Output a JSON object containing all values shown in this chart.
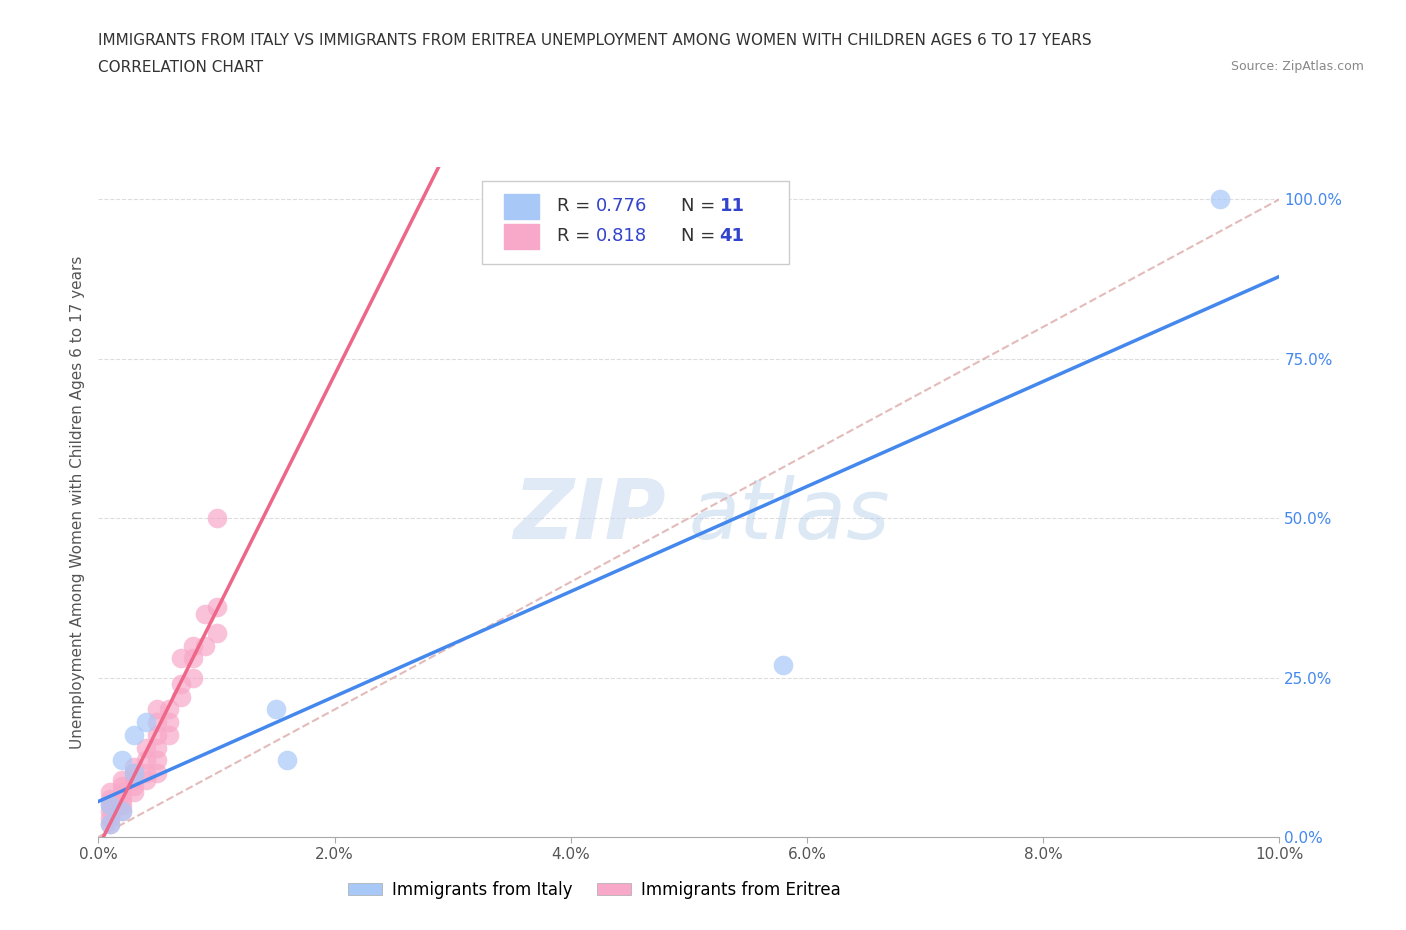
{
  "title_line1": "IMMIGRANTS FROM ITALY VS IMMIGRANTS FROM ERITREA UNEMPLOYMENT AMONG WOMEN WITH CHILDREN AGES 6 TO 17 YEARS",
  "title_line2": "CORRELATION CHART",
  "source": "Source: ZipAtlas.com",
  "ylabel": "Unemployment Among Women with Children Ages 6 to 17 years",
  "xlim": [
    0.0,
    0.1
  ],
  "ylim": [
    0.0,
    1.05
  ],
  "yticks": [
    0.0,
    0.25,
    0.5,
    0.75,
    1.0
  ],
  "ytick_labels": [
    "0.0%",
    "25.0%",
    "50.0%",
    "75.0%",
    "100.0%"
  ],
  "xticks": [
    0.0,
    0.02,
    0.04,
    0.06,
    0.08,
    0.1
  ],
  "xtick_labels": [
    "0.0%",
    "2.0%",
    "4.0%",
    "6.0%",
    "8.0%",
    "10.0%"
  ],
  "italy_color": "#a8c8f8",
  "eritrea_color": "#f8a8c8",
  "italy_line_color": "#4488ee",
  "eritrea_line_color": "#ee6688",
  "ref_line_color": "#ddaaaa",
  "italy_R": 0.776,
  "italy_N": 11,
  "eritrea_R": 0.818,
  "eritrea_N": 41,
  "legend_R_color": "#3344cc",
  "watermark_text": "ZIP",
  "watermark_text2": "atlas",
  "italy_x": [
    0.001,
    0.001,
    0.002,
    0.002,
    0.003,
    0.003,
    0.004,
    0.015,
    0.016,
    0.058,
    0.095
  ],
  "italy_y": [
    0.02,
    0.05,
    0.04,
    0.12,
    0.1,
    0.16,
    0.18,
    0.2,
    0.12,
    0.27,
    1.0
  ],
  "eritrea_x": [
    0.001,
    0.001,
    0.001,
    0.001,
    0.001,
    0.001,
    0.002,
    0.002,
    0.002,
    0.002,
    0.002,
    0.002,
    0.003,
    0.003,
    0.003,
    0.003,
    0.003,
    0.004,
    0.004,
    0.004,
    0.004,
    0.005,
    0.005,
    0.005,
    0.005,
    0.005,
    0.005,
    0.006,
    0.006,
    0.006,
    0.007,
    0.007,
    0.007,
    0.008,
    0.008,
    0.008,
    0.009,
    0.009,
    0.01,
    0.01,
    0.01
  ],
  "eritrea_y": [
    0.02,
    0.03,
    0.04,
    0.05,
    0.06,
    0.07,
    0.04,
    0.05,
    0.06,
    0.07,
    0.08,
    0.09,
    0.07,
    0.08,
    0.09,
    0.1,
    0.11,
    0.09,
    0.1,
    0.12,
    0.14,
    0.1,
    0.12,
    0.14,
    0.16,
    0.18,
    0.2,
    0.16,
    0.18,
    0.2,
    0.22,
    0.24,
    0.28,
    0.25,
    0.28,
    0.3,
    0.3,
    0.35,
    0.32,
    0.36,
    0.5
  ],
  "background_color": "#ffffff",
  "grid_color": "#dddddd",
  "title_fontsize": 11,
  "tick_fontsize": 11,
  "ylabel_fontsize": 11,
  "legend_fontsize": 12
}
